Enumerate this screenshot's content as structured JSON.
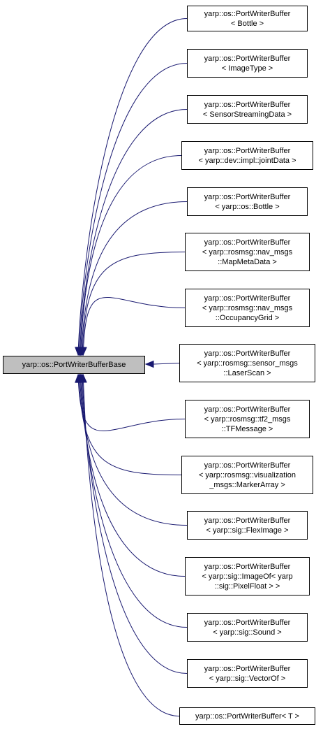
{
  "colors": {
    "edge": "#191970",
    "base_fill": "#bfbfbf",
    "node_fill": "#ffffff",
    "border": "#000000"
  },
  "base": {
    "lines": [
      "yarp::os::PortWriterBufferBase"
    ]
  },
  "derived": [
    {
      "lines": [
        "yarp::os::PortWriterBuffer",
        "< Bottle >"
      ]
    },
    {
      "lines": [
        "yarp::os::PortWriterBuffer",
        "< ImageType >"
      ]
    },
    {
      "lines": [
        "yarp::os::PortWriterBuffer",
        "< SensorStreamingData >"
      ]
    },
    {
      "lines": [
        "yarp::os::PortWriterBuffer",
        "< yarp::dev::impl::jointData >"
      ]
    },
    {
      "lines": [
        "yarp::os::PortWriterBuffer",
        "< yarp::os::Bottle >"
      ]
    },
    {
      "lines": [
        "yarp::os::PortWriterBuffer",
        "< yarp::rosmsg::nav_msgs",
        "::MapMetaData >"
      ]
    },
    {
      "lines": [
        "yarp::os::PortWriterBuffer",
        "< yarp::rosmsg::nav_msgs",
        "::OccupancyGrid >"
      ]
    },
    {
      "lines": [
        "yarp::os::PortWriterBuffer",
        "< yarp::rosmsg::sensor_msgs",
        "::LaserScan >"
      ]
    },
    {
      "lines": [
        "yarp::os::PortWriterBuffer",
        "< yarp::rosmsg::tf2_msgs",
        "::TFMessage >"
      ]
    },
    {
      "lines": [
        "yarp::os::PortWriterBuffer",
        "< yarp::rosmsg::visualization",
        "_msgs::MarkerArray >"
      ]
    },
    {
      "lines": [
        "yarp::os::PortWriterBuffer",
        "< yarp::sig::FlexImage >"
      ]
    },
    {
      "lines": [
        "yarp::os::PortWriterBuffer",
        "< yarp::sig::ImageOf< yarp",
        "::sig::PixelFloat > >"
      ]
    },
    {
      "lines": [
        "yarp::os::PortWriterBuffer",
        "< yarp::sig::Sound >"
      ]
    },
    {
      "lines": [
        "yarp::os::PortWriterBuffer",
        "< yarp::sig::VectorOf >"
      ]
    },
    {
      "lines": [
        "yarp::os::PortWriterBuffer< T >"
      ]
    }
  ]
}
